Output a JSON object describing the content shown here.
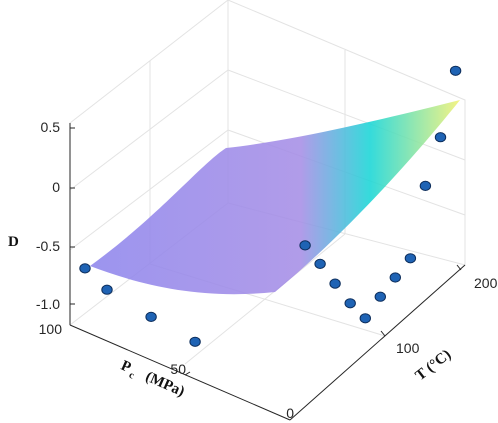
{
  "chart_data": {
    "type": "surface3d",
    "zlabel": "D",
    "xlabel_main": "P",
    "xlabel_sub": "c",
    "xlabel_unit": "(MPa)",
    "ylabel": "T (°C)",
    "x_ticks": [
      "100",
      "50",
      "0"
    ],
    "y_ticks": [
      "100",
      "200"
    ],
    "z_ticks": [
      "0.5",
      "0",
      "-0.5",
      "-1.0"
    ],
    "zlim": [
      -1.0,
      0.5
    ],
    "grid": true,
    "colormap": [
      "#8f86ec",
      "#a68ee6",
      "#19d6d6",
      "#fff36e"
    ],
    "points": [
      {
        "P": 100,
        "T": 20,
        "D": -0.65
      },
      {
        "P": 90,
        "T": 20,
        "D": -0.75
      },
      {
        "P": 70,
        "T": 20,
        "D": -0.82
      },
      {
        "P": 50,
        "T": 20,
        "D": -0.87
      },
      {
        "P": 0,
        "T": 20,
        "D": 0.35
      },
      {
        "P": 0,
        "T": 40,
        "D": 0.08
      },
      {
        "P": 0,
        "T": 60,
        "D": -0.2
      },
      {
        "P": 0,
        "T": 80,
        "D": -0.48
      },
      {
        "P": 0,
        "T": 100,
        "D": -0.72
      },
      {
        "P": 0,
        "T": 120,
        "D": -0.65
      },
      {
        "P": 0,
        "T": 140,
        "D": -0.6
      },
      {
        "P": 0,
        "T": 160,
        "D": -0.55
      },
      {
        "P": 0,
        "T": 180,
        "D": -0.05
      },
      {
        "P": 0,
        "T": 200,
        "D": 0.25
      },
      {
        "P": 0,
        "T": 220,
        "D": 0.7
      }
    ]
  }
}
